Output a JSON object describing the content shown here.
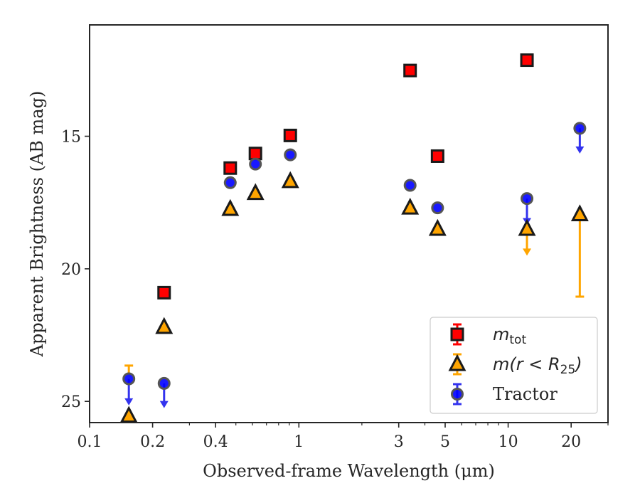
{
  "chart_data": {
    "type": "scatter",
    "title": "",
    "xlabel": "Observed-frame Wavelength (μm)",
    "ylabel": "Apparent Brightness (AB mag)",
    "x_scale": "log",
    "xlim": [
      0.1,
      30
    ],
    "ylim": [
      25.8,
      10.8
    ],
    "y_inverted": true,
    "x_ticks": [
      {
        "value": 0.1,
        "label": "0.1"
      },
      {
        "value": 0.2,
        "label": "0.2"
      },
      {
        "value": 0.4,
        "label": "0.4"
      },
      {
        "value": 1,
        "label": "1"
      },
      {
        "value": 3,
        "label": "3"
      },
      {
        "value": 5,
        "label": "5"
      },
      {
        "value": 10,
        "label": "10"
      },
      {
        "value": 20,
        "label": "20"
      }
    ],
    "y_ticks": [
      {
        "value": 15,
        "label": "15"
      },
      {
        "value": 20,
        "label": "20"
      },
      {
        "value": 25,
        "label": "25"
      }
    ],
    "grid": false,
    "legend_position": "bottom-right",
    "series": [
      {
        "name": "m_tot",
        "name_main": "m",
        "name_sub": "tot",
        "marker": "square",
        "color": "#ff0000",
        "edge_color": "#1a1a1a",
        "points": [
          {
            "x": 0.227,
            "y": 20.9
          },
          {
            "x": 0.47,
            "y": 16.2
          },
          {
            "x": 0.62,
            "y": 15.65
          },
          {
            "x": 0.91,
            "y": 14.97
          },
          {
            "x": 3.4,
            "y": 12.52
          },
          {
            "x": 4.6,
            "y": 15.75
          },
          {
            "x": 12.3,
            "y": 12.13
          }
        ]
      },
      {
        "name": "m(r < R_25)",
        "name_main": "m(r < R",
        "name_sub": "25",
        "name_tail": ")",
        "marker": "triangle",
        "color": "#ffa500",
        "edge_color": "#1a1a1a",
        "points": [
          {
            "x": 0.154,
            "y": 25.55
          },
          {
            "x": 0.227,
            "y": 22.2
          },
          {
            "x": 0.47,
            "y": 17.75
          },
          {
            "x": 0.62,
            "y": 17.15
          },
          {
            "x": 0.91,
            "y": 16.7
          },
          {
            "x": 3.4,
            "y": 17.7
          },
          {
            "x": 4.6,
            "y": 18.5
          },
          {
            "x": 12.3,
            "y": 18.5,
            "err_low": 19.45,
            "upper_limit": true
          },
          {
            "x": 22.0,
            "y": 17.95,
            "err_low": 21.05,
            "err_high": 17.95
          }
        ]
      },
      {
        "name": "Tractor",
        "marker": "circle",
        "color": "#0000ff",
        "edge_color": "#555555",
        "points": [
          {
            "x": 0.154,
            "y": 24.15,
            "upper_limit": true,
            "arrow_to": 25.1,
            "err_high": 23.65
          },
          {
            "x": 0.227,
            "y": 24.32,
            "upper_limit": true,
            "arrow_to": 25.2
          },
          {
            "x": 0.47,
            "y": 16.75
          },
          {
            "x": 0.62,
            "y": 16.05
          },
          {
            "x": 0.91,
            "y": 15.7
          },
          {
            "x": 3.4,
            "y": 16.85
          },
          {
            "x": 4.6,
            "y": 17.7
          },
          {
            "x": 12.3,
            "y": 17.35,
            "upper_limit": true,
            "arrow_to": 18.3
          },
          {
            "x": 22.0,
            "y": 14.7,
            "upper_limit": true,
            "arrow_to": 15.6
          }
        ]
      }
    ]
  }
}
